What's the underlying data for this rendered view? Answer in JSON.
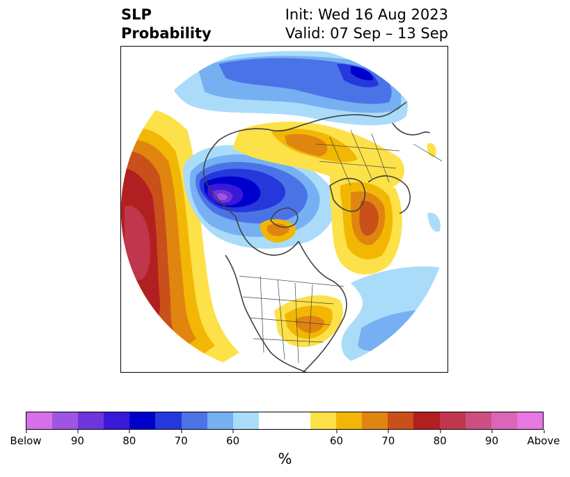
{
  "title": {
    "left_line1": "SLP",
    "left_line2": "Probability",
    "right_line1": "Init: Wed 16 Aug 2023",
    "right_line2": "Valid: 07 Sep – 13 Sep"
  },
  "map": {
    "projection": "north-polar-stereographic",
    "features": [
      "coastlines",
      "country-borders",
      "us-state-borders"
    ],
    "regions": [
      {
        "name": "below-center-canada-arctic",
        "category": "Below",
        "peak_percent": 95
      },
      {
        "name": "below-northern-russia",
        "category": "Below",
        "peak_percent": 80
      },
      {
        "name": "above-north-pacific",
        "category": "Above",
        "peak_percent": 90
      },
      {
        "name": "above-europe-scandinavia",
        "category": "Above",
        "peak_percent": 75
      },
      {
        "name": "above-greenland-sea",
        "category": "Above",
        "peak_percent": 75
      },
      {
        "name": "above-eastern-us",
        "category": "Above",
        "peak_percent": 70
      },
      {
        "name": "below-north-atlantic",
        "category": "Below",
        "peak_percent": 60
      }
    ]
  },
  "colorbar": {
    "colors": [
      "#d670e8",
      "#9f55e3",
      "#6d35dc",
      "#3a18d8",
      "#0000cc",
      "#2438dc",
      "#4b73e8",
      "#76b0f2",
      "#aadcfa",
      "#ffffff",
      "#ffffff",
      "#fde148",
      "#f2b705",
      "#e0850f",
      "#c9501a",
      "#b21f21",
      "#c0364d",
      "#cc4f82",
      "#db65b7",
      "#e777e2"
    ],
    "tick_labels": [
      "Below",
      "90",
      "80",
      "70",
      "60",
      "60",
      "70",
      "80",
      "90",
      "Above"
    ],
    "label": "%"
  }
}
